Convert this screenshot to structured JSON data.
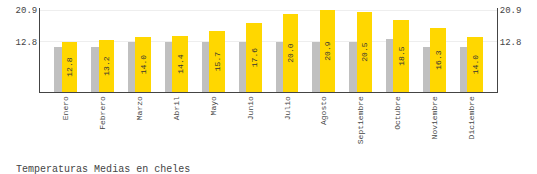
{
  "chart_data": {
    "type": "bar",
    "title": "Temperaturas Medias en cheles",
    "categories": [
      "Enero",
      "Febrero",
      "Marzo",
      "Abril",
      "Mayo",
      "Junio",
      "Julio",
      "Agosto",
      "Septiembre",
      "Octubre",
      "Noviembre",
      "Diciembre"
    ],
    "series": [
      {
        "color": "#C0C0C0",
        "values": [
          11.5,
          11.5,
          12.8,
          12.8,
          12.8,
          12.8,
          12.8,
          12.8,
          12.8,
          13.5,
          11.5,
          11.5
        ]
      },
      {
        "color": "#FFD700",
        "values": [
          12.8,
          13.2,
          14.0,
          14.4,
          15.7,
          17.6,
          20.0,
          20.9,
          20.5,
          18.5,
          16.3,
          14.0
        ],
        "value_labels": [
          "12.8",
          "13.2",
          "14.0",
          "14.4",
          "15.7",
          "17.6",
          "20.0",
          "20.9",
          "20.5",
          "18.5",
          "16.3",
          "14.0"
        ],
        "data_labels": true
      }
    ],
    "ylim": [
      0,
      21.5
    ],
    "yticks": [
      12.8,
      20.9
    ],
    "grid": true
  }
}
